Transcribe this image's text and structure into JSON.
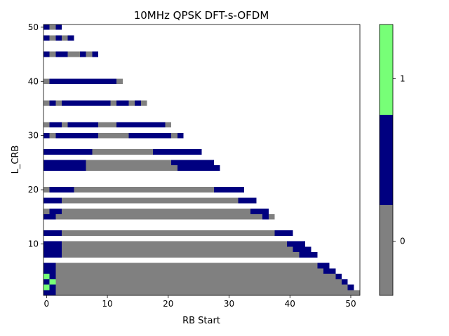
{
  "chart_data": {
    "type": "heatmap",
    "title": "10MHz QPSK DFT-s-OFDM",
    "xlabel": "RB Start",
    "ylabel": "L_CRB",
    "xlim": [
      -0.5,
      51.5
    ],
    "ylim": [
      0.5,
      50.5
    ],
    "x_ticks": [
      "0",
      "10",
      "20",
      "30",
      "40",
      "50"
    ],
    "y_ticks": [
      "10",
      "20",
      "30",
      "40",
      "50"
    ],
    "colorbar": {
      "levels": [
        {
          "value": -1,
          "color": "#808080",
          "label": ""
        },
        {
          "value": 0,
          "color": "#000080",
          "label": "0"
        },
        {
          "value": 1,
          "color": "#77ff77",
          "label": "1"
        }
      ],
      "tick_labels": [
        "0",
        "1"
      ]
    },
    "cell_value_legend": "-1 = gray, 0 = navy, 1 = light green; blank = not plotted",
    "rows": [
      {
        "L": 1,
        "cells": [
          [
            0,
            1,
            0
          ],
          [
            2,
            50,
            -1
          ],
          [
            51,
            51,
            -1
          ]
        ]
      },
      {
        "L": 2,
        "cells": [
          [
            0,
            0,
            1
          ],
          [
            1,
            1,
            0
          ],
          [
            2,
            49,
            -1
          ],
          [
            50,
            50,
            0
          ]
        ]
      },
      {
        "L": 3,
        "cells": [
          [
            0,
            0,
            0
          ],
          [
            1,
            1,
            1
          ],
          [
            2,
            48,
            -1
          ],
          [
            49,
            49,
            0
          ]
        ]
      },
      {
        "L": 4,
        "cells": [
          [
            0,
            0,
            1
          ],
          [
            1,
            1,
            0
          ],
          [
            2,
            47,
            -1
          ],
          [
            48,
            48,
            0
          ]
        ]
      },
      {
        "L": 5,
        "cells": [
          [
            0,
            1,
            0
          ],
          [
            2,
            45,
            -1
          ],
          [
            46,
            47,
            0
          ]
        ]
      },
      {
        "L": 6,
        "cells": [
          [
            0,
            1,
            0
          ],
          [
            2,
            44,
            -1
          ],
          [
            45,
            46,
            0
          ]
        ]
      },
      {
        "L": 8,
        "cells": [
          [
            0,
            2,
            0
          ],
          [
            3,
            41,
            -1
          ],
          [
            42,
            44,
            0
          ]
        ]
      },
      {
        "L": 9,
        "cells": [
          [
            0,
            2,
            0
          ],
          [
            3,
            40,
            -1
          ],
          [
            41,
            43,
            0
          ]
        ]
      },
      {
        "L": 10,
        "cells": [
          [
            0,
            2,
            0
          ],
          [
            3,
            39,
            -1
          ],
          [
            40,
            42,
            0
          ]
        ]
      },
      {
        "L": 12,
        "cells": [
          [
            0,
            2,
            0
          ],
          [
            3,
            37,
            -1
          ],
          [
            38,
            40,
            0
          ]
        ]
      },
      {
        "L": 15,
        "cells": [
          [
            0,
            0,
            0
          ],
          [
            1,
            1,
            0
          ],
          [
            2,
            35,
            -1
          ],
          [
            36,
            36,
            0
          ],
          [
            37,
            37,
            -1
          ]
        ]
      },
      {
        "L": 16,
        "cells": [
          [
            0,
            0,
            -1
          ],
          [
            1,
            2,
            0
          ],
          [
            3,
            33,
            -1
          ],
          [
            34,
            36,
            0
          ]
        ]
      },
      {
        "L": 18,
        "cells": [
          [
            0,
            2,
            0
          ],
          [
            3,
            31,
            -1
          ],
          [
            32,
            34,
            0
          ]
        ]
      },
      {
        "L": 20,
        "cells": [
          [
            0,
            0,
            -1
          ],
          [
            1,
            4,
            0
          ],
          [
            5,
            27,
            -1
          ],
          [
            28,
            32,
            0
          ]
        ]
      },
      {
        "L": 24,
        "cells": [
          [
            0,
            6,
            0
          ],
          [
            7,
            21,
            -1
          ],
          [
            22,
            28,
            0
          ]
        ]
      },
      {
        "L": 25,
        "cells": [
          [
            0,
            6,
            0
          ],
          [
            7,
            20,
            -1
          ],
          [
            21,
            27,
            0
          ]
        ]
      },
      {
        "L": 27,
        "cells": [
          [
            0,
            7,
            0
          ],
          [
            8,
            17,
            -1
          ],
          [
            18,
            25,
            0
          ]
        ]
      },
      {
        "L": 30,
        "cells": [
          [
            0,
            0,
            0
          ],
          [
            1,
            1,
            -1
          ],
          [
            2,
            8,
            0
          ],
          [
            9,
            13,
            -1
          ],
          [
            14,
            20,
            0
          ],
          [
            21,
            21,
            -1
          ],
          [
            22,
            22,
            0
          ]
        ]
      },
      {
        "L": 32,
        "cells": [
          [
            0,
            0,
            -1
          ],
          [
            1,
            2,
            0
          ],
          [
            3,
            3,
            -1
          ],
          [
            4,
            8,
            0
          ],
          [
            9,
            11,
            -1
          ],
          [
            12,
            19,
            0
          ],
          [
            20,
            20,
            -1
          ]
        ]
      },
      {
        "L": 36,
        "cells": [
          [
            0,
            0,
            -1
          ],
          [
            1,
            1,
            0
          ],
          [
            2,
            2,
            -1
          ],
          [
            3,
            10,
            0
          ],
          [
            11,
            11,
            -1
          ],
          [
            12,
            13,
            0
          ],
          [
            14,
            14,
            -1
          ],
          [
            15,
            15,
            0
          ],
          [
            16,
            16,
            -1
          ]
        ]
      },
      {
        "L": 40,
        "cells": [
          [
            0,
            0,
            -1
          ],
          [
            1,
            11,
            0
          ],
          [
            12,
            12,
            -1
          ]
        ]
      },
      {
        "L": 45,
        "cells": [
          [
            0,
            0,
            0
          ],
          [
            1,
            1,
            -1
          ],
          [
            2,
            3,
            0
          ],
          [
            4,
            5,
            -1
          ],
          [
            6,
            6,
            0
          ],
          [
            7,
            7,
            -1
          ],
          [
            8,
            8,
            0
          ]
        ]
      },
      {
        "L": 48,
        "cells": [
          [
            0,
            0,
            0
          ],
          [
            1,
            1,
            -1
          ],
          [
            2,
            2,
            0
          ],
          [
            3,
            3,
            -1
          ],
          [
            4,
            4,
            0
          ]
        ]
      },
      {
        "L": 50,
        "cells": [
          [
            0,
            0,
            0
          ],
          [
            1,
            1,
            -1
          ],
          [
            2,
            2,
            0
          ]
        ]
      }
    ]
  }
}
